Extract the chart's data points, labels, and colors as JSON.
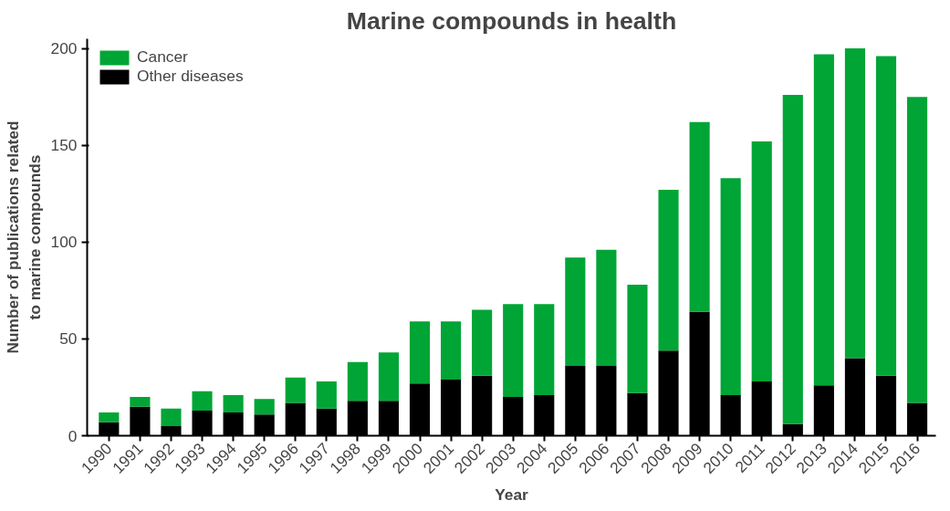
{
  "chart_data": {
    "type": "bar",
    "title": "Marine compounds in health",
    "xlabel": "Year",
    "ylabel": "Number of publications related\nto marine compounds",
    "categories": [
      "1990",
      "1991",
      "1992",
      "1993",
      "1994",
      "1995",
      "1996",
      "1997",
      "1998",
      "1999",
      "2000",
      "2001",
      "2002",
      "2003",
      "2004",
      "2005",
      "2006",
      "2007",
      "2008",
      "2009",
      "2010",
      "2011",
      "2012",
      "2013",
      "2014",
      "2015",
      "2016"
    ],
    "stacked": true,
    "series": [
      {
        "name": "Other diseases",
        "color": "#000000",
        "values": [
          7,
          15,
          5,
          13,
          12,
          11,
          17,
          14,
          18,
          18,
          27,
          29,
          31,
          20,
          21,
          36,
          36,
          22,
          44,
          64,
          21,
          28,
          6,
          26,
          40,
          31,
          17
        ]
      },
      {
        "name": "Cancer",
        "color": "#00a535",
        "values": [
          5,
          5,
          9,
          10,
          9,
          8,
          13,
          14,
          20,
          25,
          32,
          30,
          34,
          48,
          47,
          56,
          60,
          56,
          83,
          98,
          112,
          124,
          170,
          171,
          160,
          165,
          158
        ]
      }
    ],
    "ylim": [
      0,
      205
    ],
    "yticks": [
      0,
      50,
      100,
      150,
      200
    ],
    "grid": false,
    "legend": "top left"
  }
}
